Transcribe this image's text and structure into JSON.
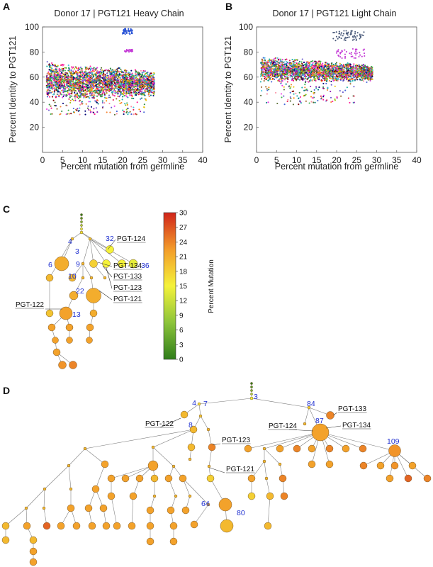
{
  "panels": {
    "A": {
      "label": "A",
      "title": "Donor 17 | PGT121 Heavy Chain"
    },
    "B": {
      "label": "B",
      "title": "Donor 17 | PGT121 Light Chain"
    },
    "C": {
      "label": "C"
    },
    "D": {
      "label": "D"
    }
  },
  "colors": {
    "low": "#2f8a1e",
    "mid": "#f4f23a",
    "high": "#d22a1a",
    "node_typical": "#f29a2e",
    "label_blue": "#1f2fd0"
  },
  "chart_data": [
    {
      "type": "scatter",
      "panel": "A",
      "title": "Donor 17 | PGT121 Heavy Chain",
      "xlabel": "Percent mutation from germline",
      "ylabel": "Percent Identity to PGT121",
      "xlim": [
        0,
        40
      ],
      "ylim": [
        0,
        100
      ],
      "xticks": [
        0,
        5,
        10,
        15,
        20,
        25,
        30,
        35,
        40
      ],
      "yticks": [
        20,
        40,
        60,
        80,
        100
      ],
      "grid": false,
      "clusters": [
        {
          "x": [
            1,
            28
          ],
          "y": [
            42,
            73
          ],
          "density": "dense",
          "points": 2600
        },
        {
          "x": [
            1,
            26
          ],
          "y": [
            30,
            50
          ],
          "density": "sparse",
          "points": 200
        },
        {
          "x": [
            20,
            22.5
          ],
          "y": [
            94,
            99
          ],
          "density": "dense",
          "points": 40,
          "color": "#2a54d6"
        },
        {
          "x": [
            20.5,
            22.5
          ],
          "y": [
            80,
            82
          ],
          "density": "dense",
          "points": 25,
          "color": "#c43ad6"
        }
      ]
    },
    {
      "type": "scatter",
      "panel": "B",
      "title": "Donor 17 | PGT121 Light Chain",
      "xlabel": "Percent mutation from germline",
      "ylabel": "Percent Identity to PGT121",
      "xlim": [
        0,
        40
      ],
      "ylim": [
        0,
        100
      ],
      "xticks": [
        0,
        5,
        10,
        15,
        20,
        25,
        30,
        35,
        40
      ],
      "yticks": [
        20,
        40,
        60,
        80,
        100
      ],
      "grid": false,
      "clusters": [
        {
          "x": [
            1,
            29
          ],
          "y": [
            55,
            77
          ],
          "density": "dense",
          "points": 2400
        },
        {
          "x": [
            1,
            25
          ],
          "y": [
            38,
            55
          ],
          "density": "sparse",
          "points": 120
        },
        {
          "x": [
            19,
            27
          ],
          "y": [
            89,
            97
          ],
          "density": "dense",
          "points": 60,
          "color": "#4a5a7a"
        },
        {
          "x": [
            20,
            27
          ],
          "y": [
            75,
            83
          ],
          "density": "dense",
          "points": 45,
          "color": "#c43ad6"
        }
      ]
    },
    {
      "type": "tree",
      "panel": "C",
      "colorbar": {
        "label": "Percent Mutation",
        "min": 0,
        "max": 30,
        "ticks": [
          0,
          3,
          6,
          9,
          12,
          15,
          18,
          21,
          24,
          27,
          30
        ]
      },
      "labels": [
        "3",
        "4",
        "32",
        "6",
        "9",
        "10",
        "22",
        "13",
        "36"
      ],
      "callouts": [
        "PGT-124",
        "PGT-134",
        "PGT-133",
        "PGT-123",
        "PGT-121",
        "PGT-122"
      ]
    },
    {
      "type": "tree",
      "panel": "D",
      "labels": [
        "3",
        "4",
        "7",
        "8",
        "84",
        "87",
        "109",
        "64",
        "80"
      ],
      "callouts": [
        "PGT-133",
        "PGT-122",
        "PGT-124",
        "PGT-134",
        "PGT-123",
        "PGT-121"
      ]
    }
  ]
}
